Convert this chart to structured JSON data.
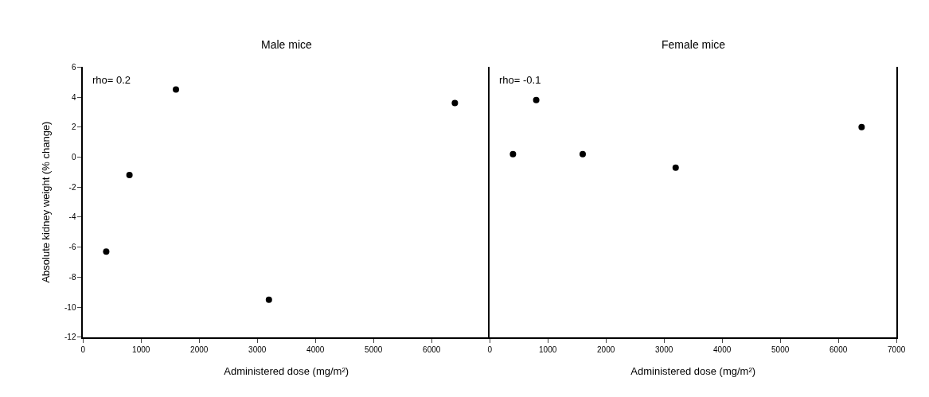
{
  "chart_data": [
    {
      "type": "scatter",
      "title": "Male mice",
      "xlabel": "Administered dose (mg/m²)",
      "ylabel": "Absolute kidney weight (% change)",
      "x": [
        400,
        800,
        1600,
        3200,
        6400
      ],
      "series": [
        {
          "color": "#000000",
          "values": [
            -6.3,
            -1.2,
            4.5,
            -9.5,
            3.6
          ]
        }
      ],
      "xlim": [
        0,
        7000
      ],
      "xticks": [
        0,
        1000,
        2000,
        3000,
        4000,
        5000,
        6000
      ],
      "ylim": [
        -12,
        6
      ],
      "yticks": [
        -12,
        -10,
        -8,
        -6,
        -4,
        -2,
        0,
        2,
        4,
        6
      ],
      "annotations": [
        "rho= 0.2"
      ],
      "marker": "circle"
    },
    {
      "type": "scatter",
      "title": "Female mice",
      "xlabel": "Administered dose (mg/m²)",
      "x": [
        400,
        800,
        1600,
        3200,
        6400
      ],
      "series": [
        {
          "color": "#000000",
          "values": [
            0.2,
            3.8,
            0.2,
            -0.7,
            2.0
          ]
        }
      ],
      "xlim": [
        0,
        7000
      ],
      "xticks": [
        0,
        1000,
        2000,
        3000,
        4000,
        5000,
        6000,
        7000
      ],
      "ylim": [
        -12,
        6
      ],
      "tick_labels": "x",
      "annotations": [
        "rho= -0.1"
      ],
      "marker": "circle"
    }
  ]
}
